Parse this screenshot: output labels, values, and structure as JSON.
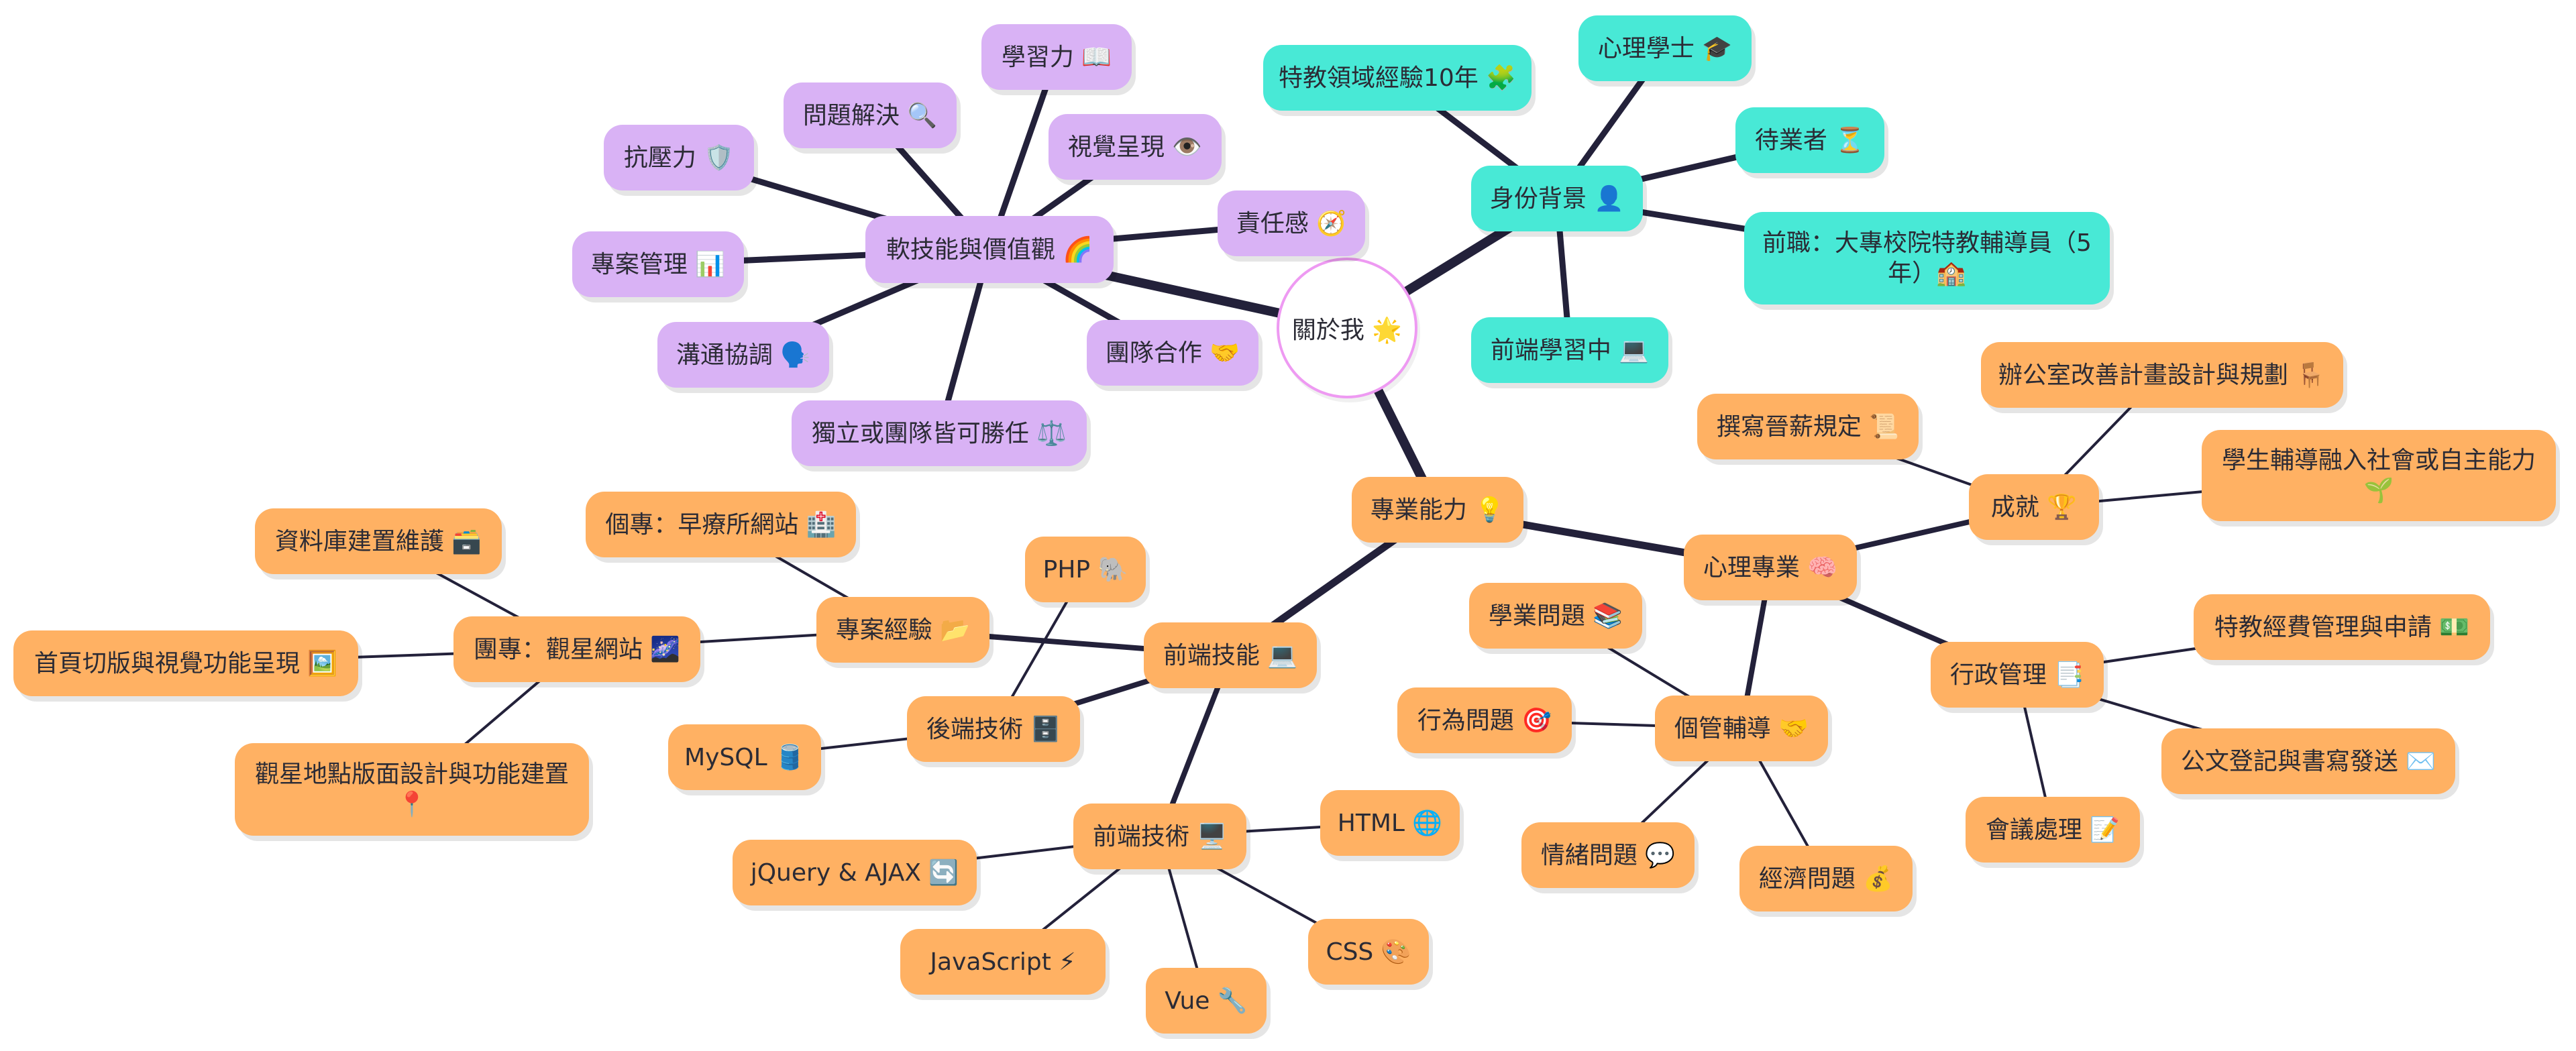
{
  "root": {
    "label": "關於我 🌟"
  },
  "soft": {
    "label": "軟技能與價值觀 🌈",
    "children": {
      "learning": "學習力 📖",
      "problem": "問題解決 🔍",
      "visual": "視覺呈現 👁️",
      "stress": "抗壓力 🛡️",
      "responsibility": "責任感 🧭",
      "pm": "專案管理 📊",
      "communication": "溝通協調 🗣️",
      "teamwork": "團隊合作 🤝",
      "independent": "獨立或團隊皆可勝任 ⚖️"
    }
  },
  "identity": {
    "label": "身份背景 👤",
    "children": {
      "sped": "特教領域經驗10年 🧩",
      "degree": "心理學士 🎓",
      "waiting": "待業者 ⏳",
      "previous": "前職：大專校院特教輔導員（5年）🏫",
      "frontend": "前端學習中 💻"
    }
  },
  "pro": {
    "label": "專業能力 💡",
    "psych": {
      "label": "心理專業 🧠",
      "achievement": {
        "label": "成就 🏆",
        "children": {
          "salary": "撰寫晉薪規定 📜",
          "office": "辦公室改善計畫設計與規劃 🪑",
          "students": "學生輔導融入社會或自主能力 🌱"
        }
      },
      "admin": {
        "label": "行政管理 📑",
        "children": {
          "funds": "特教經費管理與申請 💵",
          "docs": "公文登記與書寫發送 ✉️",
          "meeting": "會議處理 📝"
        }
      },
      "case": {
        "label": "個管輔導 🤝",
        "children": {
          "academic": "學業問題 📚",
          "behavior": "行為問題 🎯",
          "emotion": "情緒問題 💬",
          "economic": "經濟問題 💰"
        }
      }
    },
    "frontend": {
      "label": "前端技能 💻",
      "projects": {
        "label": "專案經驗 📂",
        "solo": "個專：早療所網站 🏥",
        "team": {
          "label": "團專：觀星網站 🌌",
          "children": {
            "db": "資料庫建置維護 🗃️",
            "home": "首頁切版與視覺功能呈現 🖼️",
            "spots": "觀星地點版面設計與功能建置 📍"
          }
        }
      },
      "backend": {
        "label": "後端技術 🗄️",
        "children": {
          "php": "PHP 🐘",
          "mysql": "MySQL 🛢️"
        }
      },
      "fe": {
        "label": "前端技術 🖥️",
        "children": {
          "html": "HTML 🌐",
          "jquery": "jQuery & AJAX 🔄",
          "js": "JavaScript ⚡",
          "vue": "Vue 🔧",
          "css": "CSS 🎨"
        }
      }
    }
  },
  "colors": {
    "soft_branch": "#d9b2f5",
    "identity_branch": "#48e9d6",
    "pro_branch": "#ffb163",
    "link": "#23213a",
    "center_border": "#ee9af2"
  }
}
